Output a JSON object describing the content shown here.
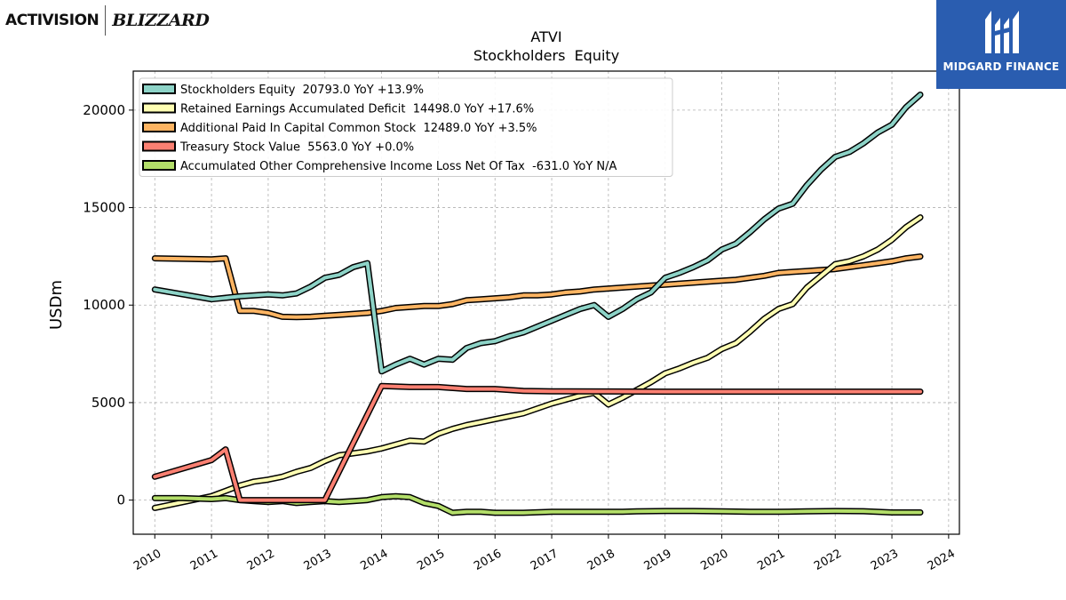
{
  "brand": {
    "left_logo_a": "ACTIVISION",
    "left_logo_b": "BLIZZARD",
    "right_logo": "MIDGARD FINANCE",
    "right_logo_color": "#2a5db0"
  },
  "chart_data": {
    "type": "line",
    "title": "ATVI",
    "subtitle": "Stockholders  Equity",
    "ylabel": "USDm",
    "xlabel": "",
    "xlim": [
      2009.62,
      2024.19
    ],
    "ylim": [
      -1750,
      22000
    ],
    "x_ticks": [
      2010,
      2011,
      2012,
      2013,
      2014,
      2015,
      2016,
      2017,
      2018,
      2019,
      2020,
      2021,
      2022,
      2023,
      2024
    ],
    "y_ticks": [
      0,
      5000,
      10000,
      15000,
      20000
    ],
    "grid": true,
    "legend_position": "top-left",
    "series": [
      {
        "name": "Stockholders Equity  20793.0 YoY +13.9%",
        "color": "#8dd3c7",
        "points": [
          [
            2010.0,
            10800
          ],
          [
            2011.0,
            10300
          ],
          [
            2011.5,
            10450
          ],
          [
            2012.0,
            10550
          ],
          [
            2012.25,
            10500
          ],
          [
            2012.5,
            10600
          ],
          [
            2012.75,
            10950
          ],
          [
            2013.0,
            11400
          ],
          [
            2013.25,
            11550
          ],
          [
            2013.5,
            11950
          ],
          [
            2013.75,
            12150
          ],
          [
            2014.0,
            6600
          ],
          [
            2014.25,
            6950
          ],
          [
            2014.5,
            7250
          ],
          [
            2014.75,
            6950
          ],
          [
            2015.0,
            7250
          ],
          [
            2015.25,
            7200
          ],
          [
            2015.5,
            7800
          ],
          [
            2015.75,
            8050
          ],
          [
            2016.0,
            8150
          ],
          [
            2016.25,
            8400
          ],
          [
            2016.5,
            8600
          ],
          [
            2016.75,
            8900
          ],
          [
            2017.0,
            9200
          ],
          [
            2017.25,
            9500
          ],
          [
            2017.5,
            9800
          ],
          [
            2017.75,
            10000
          ],
          [
            2018.0,
            9400
          ],
          [
            2018.25,
            9800
          ],
          [
            2018.5,
            10300
          ],
          [
            2018.75,
            10650
          ],
          [
            2019.0,
            11400
          ],
          [
            2019.25,
            11650
          ],
          [
            2019.5,
            11950
          ],
          [
            2019.75,
            12300
          ],
          [
            2020.0,
            12850
          ],
          [
            2020.25,
            13150
          ],
          [
            2020.5,
            13750
          ],
          [
            2020.75,
            14400
          ],
          [
            2021.0,
            14950
          ],
          [
            2021.25,
            15200
          ],
          [
            2021.5,
            16150
          ],
          [
            2021.75,
            16950
          ],
          [
            2022.0,
            17600
          ],
          [
            2022.25,
            17850
          ],
          [
            2022.5,
            18300
          ],
          [
            2022.75,
            18850
          ],
          [
            2023.0,
            19250
          ],
          [
            2023.25,
            20150
          ],
          [
            2023.5,
            20793
          ]
        ]
      },
      {
        "name": "Retained Earnings Accumulated Deficit  14498.0 YoY +17.6%",
        "color": "#ffffb3",
        "points": [
          [
            2010.0,
            -400
          ],
          [
            2011.0,
            200
          ],
          [
            2011.5,
            750
          ],
          [
            2011.75,
            950
          ],
          [
            2012.0,
            1050
          ],
          [
            2012.25,
            1200
          ],
          [
            2012.5,
            1450
          ],
          [
            2012.75,
            1650
          ],
          [
            2013.0,
            2000
          ],
          [
            2013.25,
            2300
          ],
          [
            2013.5,
            2400
          ],
          [
            2013.75,
            2500
          ],
          [
            2014.0,
            2650
          ],
          [
            2014.25,
            2850
          ],
          [
            2014.5,
            3050
          ],
          [
            2014.75,
            3000
          ],
          [
            2015.0,
            3400
          ],
          [
            2015.25,
            3650
          ],
          [
            2015.5,
            3850
          ],
          [
            2015.75,
            4000
          ],
          [
            2016.0,
            4150
          ],
          [
            2016.25,
            4300
          ],
          [
            2016.5,
            4450
          ],
          [
            2016.75,
            4700
          ],
          [
            2017.0,
            4950
          ],
          [
            2017.25,
            5150
          ],
          [
            2017.5,
            5350
          ],
          [
            2017.75,
            5500
          ],
          [
            2018.0,
            4900
          ],
          [
            2018.25,
            5250
          ],
          [
            2018.5,
            5650
          ],
          [
            2018.75,
            6050
          ],
          [
            2019.0,
            6500
          ],
          [
            2019.25,
            6750
          ],
          [
            2019.5,
            7050
          ],
          [
            2019.75,
            7300
          ],
          [
            2020.0,
            7750
          ],
          [
            2020.25,
            8050
          ],
          [
            2020.5,
            8650
          ],
          [
            2020.75,
            9300
          ],
          [
            2021.0,
            9800
          ],
          [
            2021.25,
            10050
          ],
          [
            2021.5,
            10900
          ],
          [
            2021.75,
            11500
          ],
          [
            2022.0,
            12100
          ],
          [
            2022.25,
            12250
          ],
          [
            2022.5,
            12500
          ],
          [
            2022.75,
            12850
          ],
          [
            2023.0,
            13350
          ],
          [
            2023.25,
            14000
          ],
          [
            2023.5,
            14498
          ]
        ]
      },
      {
        "name": "Additional Paid In Capital Common Stock  12489.0 YoY +3.5%",
        "color": "#fdb462",
        "points": [
          [
            2010.0,
            12400
          ],
          [
            2011.0,
            12350
          ],
          [
            2011.25,
            12400
          ],
          [
            2011.5,
            9700
          ],
          [
            2011.75,
            9700
          ],
          [
            2012.0,
            9600
          ],
          [
            2012.25,
            9400
          ],
          [
            2012.5,
            9380
          ],
          [
            2012.75,
            9400
          ],
          [
            2013.0,
            9450
          ],
          [
            2013.25,
            9500
          ],
          [
            2013.5,
            9550
          ],
          [
            2013.75,
            9600
          ],
          [
            2014.0,
            9700
          ],
          [
            2014.25,
            9850
          ],
          [
            2014.5,
            9900
          ],
          [
            2014.75,
            9950
          ],
          [
            2015.0,
            9950
          ],
          [
            2015.25,
            10050
          ],
          [
            2015.5,
            10250
          ],
          [
            2015.75,
            10300
          ],
          [
            2016.0,
            10350
          ],
          [
            2016.25,
            10400
          ],
          [
            2016.5,
            10500
          ],
          [
            2016.75,
            10500
          ],
          [
            2017.0,
            10550
          ],
          [
            2017.25,
            10650
          ],
          [
            2017.5,
            10700
          ],
          [
            2017.75,
            10800
          ],
          [
            2018.0,
            10850
          ],
          [
            2018.25,
            10900
          ],
          [
            2018.5,
            10950
          ],
          [
            2018.75,
            11000
          ],
          [
            2019.0,
            11050
          ],
          [
            2019.25,
            11100
          ],
          [
            2019.5,
            11150
          ],
          [
            2019.75,
            11200
          ],
          [
            2020.0,
            11250
          ],
          [
            2020.25,
            11300
          ],
          [
            2020.5,
            11400
          ],
          [
            2020.75,
            11500
          ],
          [
            2021.0,
            11650
          ],
          [
            2021.25,
            11700
          ],
          [
            2021.5,
            11750
          ],
          [
            2021.75,
            11800
          ],
          [
            2022.0,
            11850
          ],
          [
            2022.25,
            11950
          ],
          [
            2022.5,
            12050
          ],
          [
            2022.75,
            12150
          ],
          [
            2023.0,
            12250
          ],
          [
            2023.25,
            12400
          ],
          [
            2023.5,
            12489
          ]
        ]
      },
      {
        "name": "Treasury Stock Value  5563.0 YoY +0.0%",
        "color": "#fb8072",
        "points": [
          [
            2010.0,
            1200
          ],
          [
            2011.0,
            2050
          ],
          [
            2011.25,
            2600
          ],
          [
            2011.5,
            0
          ],
          [
            2012.0,
            0
          ],
          [
            2013.0,
            0
          ],
          [
            2014.0,
            5850
          ],
          [
            2014.5,
            5800
          ],
          [
            2015.0,
            5800
          ],
          [
            2015.5,
            5700
          ],
          [
            2016.0,
            5700
          ],
          [
            2016.5,
            5600
          ],
          [
            2017.0,
            5580
          ],
          [
            2018.0,
            5570
          ],
          [
            2019.0,
            5563
          ],
          [
            2020.0,
            5563
          ],
          [
            2021.0,
            5563
          ],
          [
            2022.0,
            5563
          ],
          [
            2023.0,
            5563
          ],
          [
            2023.5,
            5563
          ]
        ]
      },
      {
        "name": "Accumulated Other Comprehensive Income Loss Net Of Tax  -631.0 YoY N/A",
        "color": "#b3de69",
        "points": [
          [
            2010.0,
            100
          ],
          [
            2010.5,
            100
          ],
          [
            2011.0,
            50
          ],
          [
            2011.25,
            100
          ],
          [
            2011.5,
            0
          ],
          [
            2011.75,
            -50
          ],
          [
            2012.0,
            -100
          ],
          [
            2012.25,
            -50
          ],
          [
            2012.5,
            -150
          ],
          [
            2012.75,
            -100
          ],
          [
            2013.0,
            -50
          ],
          [
            2013.25,
            -100
          ],
          [
            2013.5,
            -50
          ],
          [
            2013.75,
            0
          ],
          [
            2014.0,
            150
          ],
          [
            2014.25,
            200
          ],
          [
            2014.5,
            150
          ],
          [
            2014.75,
            -150
          ],
          [
            2015.0,
            -300
          ],
          [
            2015.25,
            -650
          ],
          [
            2015.5,
            -600
          ],
          [
            2015.75,
            -600
          ],
          [
            2016.0,
            -650
          ],
          [
            2016.5,
            -650
          ],
          [
            2017.0,
            -600
          ],
          [
            2017.5,
            -600
          ],
          [
            2018.0,
            -600
          ],
          [
            2018.25,
            -600
          ],
          [
            2018.5,
            -580
          ],
          [
            2019.0,
            -560
          ],
          [
            2019.5,
            -560
          ],
          [
            2020.0,
            -580
          ],
          [
            2020.5,
            -600
          ],
          [
            2021.0,
            -600
          ],
          [
            2021.5,
            -580
          ],
          [
            2022.0,
            -560
          ],
          [
            2022.5,
            -570
          ],
          [
            2023.0,
            -631
          ],
          [
            2023.5,
            -631
          ]
        ]
      }
    ]
  }
}
